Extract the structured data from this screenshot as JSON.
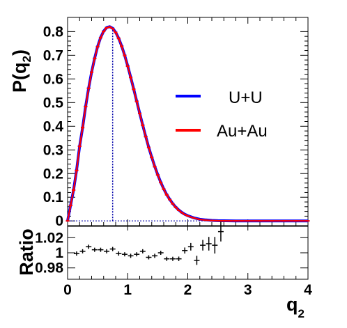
{
  "chart_data": [
    {
      "type": "line",
      "title": "",
      "xlabel": "q",
      "xlabel_sub": "2",
      "ylabel": "P(q",
      "ylabel_sub": "2",
      "ylabel_close": ")",
      "xlim": [
        0,
        4
      ],
      "ylim": [
        -0.02,
        0.86
      ],
      "yticks": [
        0,
        0.1,
        0.2,
        0.3,
        0.4,
        0.5,
        0.6,
        0.7,
        0.8
      ],
      "ytick_labels": [
        "0",
        "0.1",
        "0.2",
        "0.3",
        "0.4",
        "0.5",
        "0.6",
        "0.7",
        "0.8"
      ],
      "grid": false,
      "legend_placement": "right",
      "peak_marker_x": 0.75,
      "baseline_y": 0,
      "series": [
        {
          "name": "U+U",
          "color": "#0000ff",
          "x": [
            0,
            0.05,
            0.1,
            0.15,
            0.2,
            0.25,
            0.3,
            0.35,
            0.4,
            0.45,
            0.5,
            0.55,
            0.6,
            0.65,
            0.7,
            0.75,
            0.8,
            0.85,
            0.9,
            0.95,
            1.0,
            1.05,
            1.1,
            1.15,
            1.2,
            1.25,
            1.3,
            1.35,
            1.4,
            1.45,
            1.5,
            1.55,
            1.6,
            1.65,
            1.7,
            1.75,
            1.8,
            1.85,
            1.9,
            1.95,
            2.0,
            2.1,
            2.2,
            2.3,
            2.4,
            2.5,
            2.6,
            2.7,
            2.8,
            2.9,
            3.0,
            3.2,
            3.4,
            3.6,
            3.8,
            4.0
          ],
          "y": [
            0.0,
            0.066,
            0.131,
            0.214,
            0.316,
            0.395,
            0.484,
            0.561,
            0.629,
            0.687,
            0.737,
            0.775,
            0.802,
            0.817,
            0.821,
            0.814,
            0.797,
            0.772,
            0.739,
            0.7,
            0.655,
            0.607,
            0.557,
            0.506,
            0.455,
            0.405,
            0.357,
            0.311,
            0.269,
            0.23,
            0.195,
            0.163,
            0.135,
            0.111,
            0.091,
            0.073,
            0.058,
            0.046,
            0.036,
            0.028,
            0.022,
            0.013,
            0.007,
            0.004,
            0.002,
            0.001,
            0.0005,
            0.0002,
            0.0001,
            0.0,
            0.0,
            0.0,
            0.0,
            0.0,
            0.0,
            0.0
          ]
        },
        {
          "name": "Au+Au",
          "color": "#ff0000",
          "x": [
            0,
            0.05,
            0.1,
            0.15,
            0.2,
            0.25,
            0.3,
            0.35,
            0.4,
            0.45,
            0.5,
            0.55,
            0.6,
            0.65,
            0.7,
            0.75,
            0.8,
            0.85,
            0.9,
            0.95,
            1.0,
            1.05,
            1.1,
            1.15,
            1.2,
            1.25,
            1.3,
            1.35,
            1.4,
            1.45,
            1.5,
            1.55,
            1.6,
            1.65,
            1.7,
            1.75,
            1.8,
            1.85,
            1.9,
            1.95,
            2.0,
            2.1,
            2.2,
            2.3,
            2.4,
            2.5,
            2.6,
            2.7,
            2.8,
            2.9,
            3.0,
            3.2,
            3.4,
            3.6,
            3.8,
            4.0
          ],
          "y": [
            0.0,
            0.065,
            0.13,
            0.213,
            0.315,
            0.394,
            0.483,
            0.56,
            0.628,
            0.686,
            0.736,
            0.774,
            0.801,
            0.816,
            0.82,
            0.813,
            0.796,
            0.771,
            0.738,
            0.699,
            0.654,
            0.606,
            0.556,
            0.505,
            0.454,
            0.404,
            0.356,
            0.31,
            0.268,
            0.229,
            0.194,
            0.162,
            0.134,
            0.11,
            0.09,
            0.072,
            0.057,
            0.045,
            0.035,
            0.027,
            0.021,
            0.012,
            0.006,
            0.003,
            0.0015,
            0.0007,
            0.0003,
            0.0001,
            0.0,
            0.0,
            0.0,
            0.0,
            0.0,
            0.0,
            0.0,
            0.0
          ]
        }
      ]
    },
    {
      "type": "scatter",
      "title": "",
      "xlabel": "q",
      "xlabel_sub": "2",
      "ylabel": "Ratio",
      "xlim": [
        0,
        4
      ],
      "ylim": [
        0.965,
        1.035
      ],
      "xticks": [
        0,
        1,
        2,
        3,
        4
      ],
      "xtick_labels": [
        "0",
        "1",
        "2",
        "3",
        "4"
      ],
      "yticks": [
        0.98,
        1.0,
        1.02
      ],
      "ytick_labels": [
        "0.98",
        "1",
        "1.02"
      ],
      "grid": false,
      "series": [
        {
          "name": "",
          "color": "#000000",
          "x": [
            0.15,
            0.25,
            0.35,
            0.45,
            0.55,
            0.65,
            0.75,
            0.85,
            0.95,
            1.05,
            1.15,
            1.25,
            1.35,
            1.45,
            1.55,
            1.65,
            1.75,
            1.85,
            1.95,
            2.05,
            2.15,
            2.25,
            2.35,
            2.45,
            2.55
          ],
          "y": [
            0.999,
            1.002,
            1.008,
            1.004,
            1.004,
            1.002,
            1.005,
            0.999,
            0.998,
            0.996,
            0.998,
            1.002,
            0.994,
            0.996,
            1.0,
            0.992,
            0.992,
            0.992,
            1.003,
            1.008,
            0.99,
            1.01,
            1.012,
            1.01,
            1.028
          ],
          "yerr": [
            0.001,
            0.001,
            0.001,
            0.001,
            0.001,
            0.001,
            0.001,
            0.001,
            0.001,
            0.001,
            0.001,
            0.001,
            0.001,
            0.001,
            0.002,
            0.002,
            0.002,
            0.003,
            0.004,
            0.005,
            0.006,
            0.007,
            0.009,
            0.011,
            0.013
          ]
        }
      ]
    }
  ]
}
